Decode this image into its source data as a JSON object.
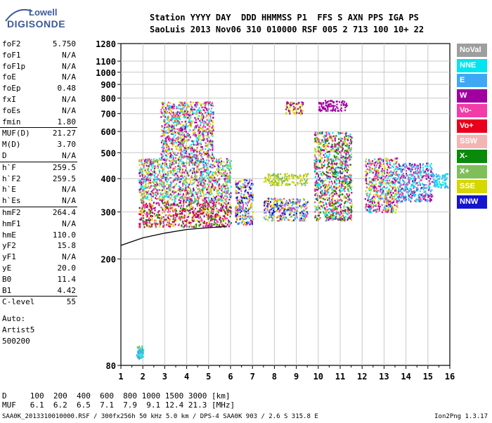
{
  "logo": {
    "line1": "Lowell",
    "line2": "DIGISONDE"
  },
  "header": {
    "row1": "Station YYYY DAY  DDD HHMMSS P1  FFS S AXN PPS IGA PS",
    "row2": "SaoLuis 2013 Nov06 310 010000 RSF 005 2 713 100 10+ 22"
  },
  "scaled": [
    {
      "name": "foF2",
      "value": "5.750"
    },
    {
      "name": "foF1",
      "value": "N/A"
    },
    {
      "name": "foF1p",
      "value": "N/A"
    },
    {
      "name": "foE",
      "value": "N/A"
    },
    {
      "name": "foEp",
      "value": "0.48"
    },
    {
      "name": "fxI",
      "value": "N/A"
    },
    {
      "name": "foEs",
      "value": "N/A"
    },
    {
      "name": "fmin",
      "value": "1.80"
    },
    {
      "name": "MUF(D)",
      "value": "21.27"
    },
    {
      "name": "M(D)",
      "value": "3.70"
    },
    {
      "name": "D",
      "value": "N/A"
    },
    {
      "name": "h`F",
      "value": "259.5"
    },
    {
      "name": "h`F2",
      "value": "259.5"
    },
    {
      "name": "h`E",
      "value": "N/A"
    },
    {
      "name": "h`Es",
      "value": "N/A"
    },
    {
      "name": "hmF2",
      "value": "264.4"
    },
    {
      "name": "hmF1",
      "value": "N/A"
    },
    {
      "name": "hmE",
      "value": "110.0"
    },
    {
      "name": "yF2",
      "value": "15.8"
    },
    {
      "name": "yF1",
      "value": "N/A"
    },
    {
      "name": "yE",
      "value": "20.0"
    },
    {
      "name": "B0",
      "value": "11.4"
    },
    {
      "name": "B1",
      "value": "4.42"
    },
    {
      "name": "C-level",
      "value": "55"
    }
  ],
  "auto": {
    "line1": "Auto:",
    "line2": "Artist5",
    "line3": "500200"
  },
  "legend": [
    {
      "label": "NoVal",
      "color": "#9e9e9e"
    },
    {
      "label": "NNE",
      "color": "#00e5f0"
    },
    {
      "label": "E",
      "color": "#3fa8f5"
    },
    {
      "label": "W",
      "color": "#a000a0"
    },
    {
      "label": "Vo-",
      "color": "#f23ca8"
    },
    {
      "label": "Vo+",
      "color": "#e8001c"
    },
    {
      "label": "SSW",
      "color": "#f5b4b4"
    },
    {
      "label": "X-",
      "color": "#0a8a0a"
    },
    {
      "label": "X+",
      "color": "#7fbf5a"
    },
    {
      "label": "SSE",
      "color": "#d6d600"
    },
    {
      "label": "NNW",
      "color": "#1414d0"
    }
  ],
  "footer": {
    "row_d": "D     100  200  400  600  800 1000 1500 3000 [km]",
    "row_muf": "MUF   6.1  6.2  6.5  7.1  7.9  9.1 12.4 21.3 [MHz]",
    "file_line": "SAA0K_2013310010000.RSF / 300fx256h 50 kHz 5.0 km / DPS-4 SAA0K 903 / 2.6 S 315.8 E",
    "version": "Ion2Png 1.3.17"
  },
  "chart_data": {
    "type": "scatter",
    "title": "",
    "xlabel": "",
    "ylabel": "",
    "xlim": [
      1,
      16
    ],
    "y_scale": "log",
    "ylim": [
      80,
      1280
    ],
    "x_ticks": [
      "1",
      "2",
      "3",
      "4",
      "5",
      "6",
      "7",
      "8",
      "9",
      "10",
      "11",
      "12",
      "13",
      "14",
      "15",
      "16"
    ],
    "y_ticks": [
      "80",
      "200",
      "300",
      "400",
      "500",
      "600",
      "700",
      "800",
      "900",
      "1000",
      "1100",
      "1280"
    ],
    "grid": true,
    "legend_position": "right",
    "echo_clusters": [
      {
        "f": [
          1.7,
          2.0
        ],
        "h": [
          85,
          95
        ],
        "series": [
          "X+",
          "NNE",
          "E"
        ]
      },
      {
        "f": [
          1.8,
          6.0
        ],
        "h": [
          265,
          330
        ],
        "series": [
          "Vo-",
          "Vo+",
          "W",
          "X-",
          "SSE"
        ]
      },
      {
        "f": [
          1.8,
          6.0
        ],
        "h": [
          330,
          480
        ],
        "series": [
          "SSE",
          "W",
          "Vo-",
          "X+",
          "NNE"
        ]
      },
      {
        "f": [
          2.8,
          5.2
        ],
        "h": [
          480,
          780
        ],
        "series": [
          "SSE",
          "W",
          "Vo-",
          "NNE"
        ]
      },
      {
        "f": [
          6.2,
          7.0
        ],
        "h": [
          270,
          400
        ],
        "series": [
          "Vo-",
          "E",
          "NNW",
          "SSE"
        ]
      },
      {
        "f": [
          7.5,
          9.5
        ],
        "h": [
          280,
          340
        ],
        "series": [
          "NNW",
          "E",
          "Vo-",
          "SSE"
        ]
      },
      {
        "f": [
          7.5,
          9.5
        ],
        "h": [
          380,
          420
        ],
        "series": [
          "SSE",
          "X+"
        ]
      },
      {
        "f": [
          8.5,
          9.3
        ],
        "h": [
          700,
          780
        ],
        "series": [
          "W",
          "SSE"
        ]
      },
      {
        "f": [
          9.8,
          11.5
        ],
        "h": [
          280,
          600
        ],
        "series": [
          "Vo-",
          "W",
          "NNE",
          "SSE",
          "X-"
        ]
      },
      {
        "f": [
          10.0,
          11.3
        ],
        "h": [
          720,
          790
        ],
        "series": [
          "W"
        ]
      },
      {
        "f": [
          12.1,
          13.6
        ],
        "h": [
          300,
          480
        ],
        "series": [
          "Vo-",
          "SSE",
          "NNE",
          "W"
        ]
      },
      {
        "f": [
          13.6,
          15.2
        ],
        "h": [
          330,
          460
        ],
        "series": [
          "NNE",
          "E",
          "Vo-",
          "W"
        ]
      },
      {
        "f": [
          15.2,
          15.9
        ],
        "h": [
          370,
          420
        ],
        "series": [
          "NNE",
          "E"
        ]
      }
    ],
    "profile_curve": {
      "f": [
        1,
        2,
        3,
        4,
        5,
        5.75
      ],
      "h": [
        225,
        240,
        250,
        258,
        262,
        264.4
      ]
    }
  }
}
